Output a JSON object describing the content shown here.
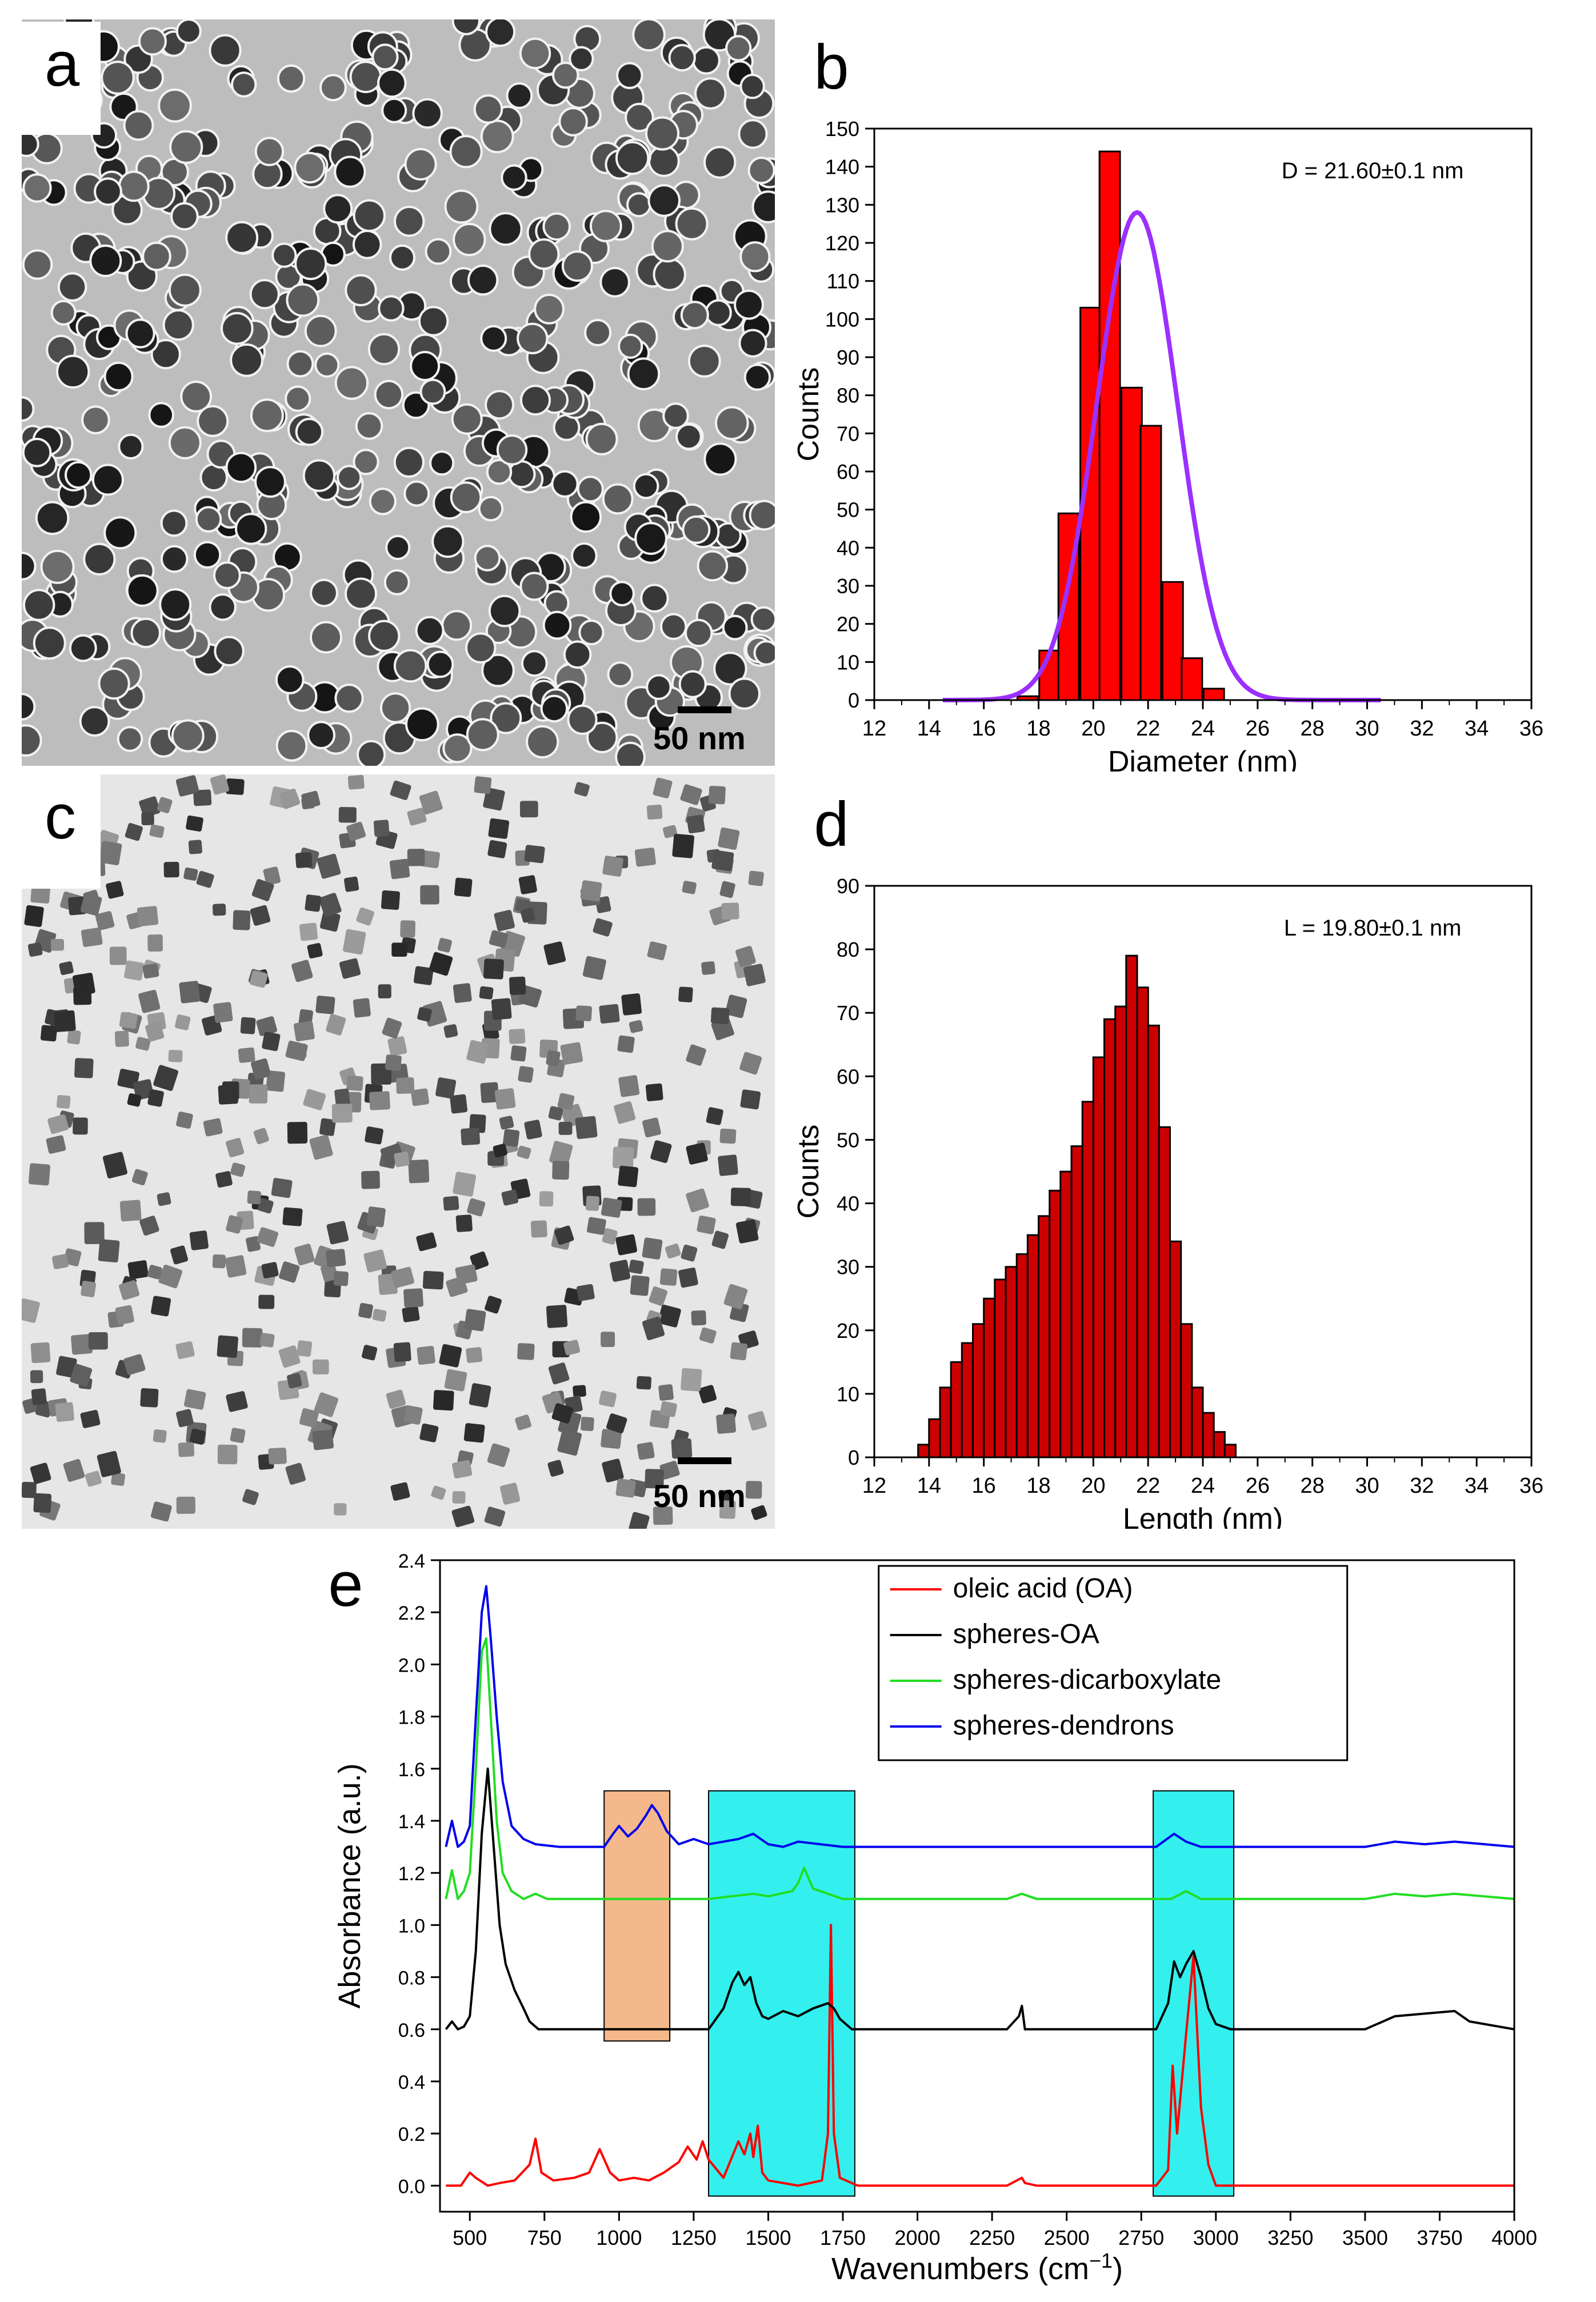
{
  "panels": {
    "a": {
      "letter": "a",
      "scale_label": "50 nm"
    },
    "c": {
      "letter": "c",
      "scale_label": "50 nm"
    }
  },
  "chart_data": [
    {
      "id": "b",
      "type": "bar",
      "letter": "b",
      "xlabel": "Diameter (nm)",
      "ylabel": "Counts",
      "annotation": "D = 21.60±0.1 nm",
      "xlim": [
        12,
        36
      ],
      "ylim": [
        0,
        150
      ],
      "xticks": [
        12,
        14,
        16,
        18,
        20,
        22,
        24,
        26,
        28,
        30,
        32,
        34,
        36
      ],
      "yticks": [
        0,
        10,
        20,
        30,
        40,
        50,
        60,
        70,
        80,
        90,
        100,
        110,
        120,
        130,
        140,
        150
      ],
      "bin_width": 0.75,
      "bins": [
        17.6,
        18.4,
        19.1,
        19.9,
        20.6,
        21.4,
        22.1,
        22.9,
        23.6,
        24.4,
        25.1,
        25.9,
        26.6
      ],
      "values": [
        1,
        13,
        49,
        103,
        144,
        82,
        72,
        31,
        11,
        3,
        0,
        0,
        0
      ],
      "bar_color": "#ff0000",
      "fit": {
        "type": "gaussian",
        "mean": 21.6,
        "sigma": 1.48,
        "peak": 128,
        "range": [
          14.5,
          30.5
        ],
        "color": "#9b30ff"
      }
    },
    {
      "id": "d",
      "type": "bar",
      "letter": "d",
      "xlabel": "Length (nm)",
      "ylabel": "Counts",
      "annotation": "L = 19.80±0.1 nm",
      "xlim": [
        12,
        36
      ],
      "ylim": [
        0,
        90
      ],
      "xticks": [
        12,
        14,
        16,
        18,
        20,
        22,
        24,
        26,
        28,
        30,
        32,
        34,
        36
      ],
      "yticks": [
        0,
        10,
        20,
        30,
        40,
        50,
        60,
        70,
        80,
        90
      ],
      "bin_width": 0.4,
      "bins": [
        13.8,
        14.2,
        14.6,
        15.0,
        15.4,
        15.8,
        16.2,
        16.6,
        17.0,
        17.4,
        17.8,
        18.2,
        18.6,
        19.0,
        19.4,
        19.8,
        20.2,
        20.6,
        21.0,
        21.4,
        21.8,
        22.2,
        22.6,
        23.0,
        23.4,
        23.8,
        24.2,
        24.6,
        25.0
      ],
      "values": [
        2,
        6,
        11,
        15,
        18,
        21,
        25,
        28,
        30,
        32,
        35,
        38,
        42,
        45,
        49,
        56,
        63,
        69,
        71,
        79,
        74,
        68,
        52,
        34,
        21,
        11,
        7,
        4,
        2
      ],
      "bar_color": "#cc0000"
    },
    {
      "id": "e",
      "type": "line",
      "letter": "e",
      "xlabel": "Wavenumbers (cm",
      "xlabel_sup": "−1",
      "xlabel_end": ")",
      "ylabel": "Absorbance (a.u.)",
      "xlim": [
        400,
        4000
      ],
      "ylim": [
        -0.1,
        2.4
      ],
      "xticks": [
        500,
        750,
        1000,
        1250,
        1500,
        1750,
        2000,
        2250,
        2500,
        2750,
        3000,
        3250,
        3500,
        3750,
        4000
      ],
      "yticks": [
        0.0,
        0.2,
        0.4,
        0.6,
        0.8,
        1.0,
        1.2,
        1.4,
        1.6,
        1.8,
        2.0,
        2.2,
        2.4
      ],
      "highlights": [
        {
          "x0": 950,
          "x1": 1170,
          "y0": 0.555,
          "y1": 1.515,
          "color": "#f5b88a"
        },
        {
          "x0": 1300,
          "x1": 1790,
          "y0": -0.04,
          "y1": 1.515,
          "color": "#33f0ee"
        },
        {
          "x0": 2790,
          "x1": 3060,
          "y0": -0.04,
          "y1": 1.515,
          "color": "#33f0ee"
        }
      ],
      "series": [
        {
          "name": "oleic acid (OA)",
          "color": "#ff0000",
          "x": [
            420,
            470,
            500,
            520,
            560,
            600,
            650,
            700,
            720,
            740,
            780,
            850,
            900,
            935,
            970,
            1000,
            1050,
            1100,
            1150,
            1200,
            1230,
            1260,
            1280,
            1300,
            1350,
            1400,
            1420,
            1440,
            1450,
            1465,
            1480,
            1500,
            1600,
            1680,
            1700,
            1710,
            1720,
            1740,
            1800,
            2300,
            2350,
            2360,
            2400,
            2800,
            2840,
            2855,
            2870,
            2900,
            2925,
            2950,
            2975,
            3000,
            3100,
            3500,
            4000
          ],
          "y": [
            0,
            0,
            0.05,
            0.03,
            0,
            0.01,
            0.02,
            0.08,
            0.18,
            0.05,
            0.02,
            0.03,
            0.05,
            0.14,
            0.05,
            0.02,
            0.03,
            0.02,
            0.05,
            0.09,
            0.15,
            0.1,
            0.17,
            0.1,
            0.03,
            0.17,
            0.12,
            0.2,
            0.11,
            0.23,
            0.05,
            0.02,
            0.0,
            0.02,
            0.2,
            1.0,
            0.2,
            0.03,
            0,
            0,
            0.03,
            0.01,
            0,
            0,
            0.06,
            0.46,
            0.2,
            0.58,
            0.88,
            0.3,
            0.08,
            0,
            0,
            0,
            0
          ]
        },
        {
          "name": "spheres-OA",
          "color": "#000000",
          "x": [
            420,
            440,
            460,
            480,
            500,
            520,
            540,
            560,
            580,
            600,
            620,
            650,
            680,
            700,
            730,
            750,
            1000,
            1300,
            1350,
            1380,
            1400,
            1420,
            1440,
            1460,
            1480,
            1500,
            1550,
            1600,
            1650,
            1700,
            1720,
            1740,
            1780,
            2300,
            2340,
            2350,
            2360,
            2400,
            2800,
            2840,
            2860,
            2880,
            2900,
            2925,
            2950,
            2975,
            3000,
            3050,
            3500,
            3600,
            3700,
            3800,
            3850,
            4000
          ],
          "y": [
            0.6,
            0.63,
            0.6,
            0.61,
            0.65,
            0.9,
            1.35,
            1.6,
            1.3,
            1.0,
            0.85,
            0.75,
            0.68,
            0.63,
            0.6,
            0.6,
            0.6,
            0.6,
            0.68,
            0.78,
            0.82,
            0.77,
            0.8,
            0.7,
            0.65,
            0.64,
            0.67,
            0.65,
            0.68,
            0.7,
            0.68,
            0.64,
            0.6,
            0.6,
            0.65,
            0.69,
            0.6,
            0.6,
            0.6,
            0.7,
            0.86,
            0.8,
            0.85,
            0.9,
            0.8,
            0.68,
            0.62,
            0.6,
            0.6,
            0.65,
            0.66,
            0.67,
            0.63,
            0.6
          ]
        },
        {
          "name": "spheres-dicarboxylate",
          "color": "#22dd22",
          "x": [
            420,
            440,
            460,
            480,
            500,
            520,
            540,
            555,
            570,
            590,
            610,
            640,
            680,
            720,
            760,
            1000,
            1300,
            1450,
            1500,
            1580,
            1600,
            1620,
            1650,
            1700,
            1750,
            2000,
            2300,
            2350,
            2400,
            2850,
            2900,
            2950,
            3500,
            3600,
            3700,
            3800,
            3900,
            4000
          ],
          "y": [
            1.1,
            1.21,
            1.1,
            1.13,
            1.2,
            1.6,
            2.05,
            2.1,
            1.8,
            1.4,
            1.2,
            1.13,
            1.1,
            1.12,
            1.1,
            1.1,
            1.1,
            1.12,
            1.11,
            1.13,
            1.16,
            1.22,
            1.14,
            1.12,
            1.1,
            1.1,
            1.1,
            1.12,
            1.1,
            1.1,
            1.13,
            1.1,
            1.1,
            1.12,
            1.11,
            1.12,
            1.11,
            1.1
          ]
        },
        {
          "name": "spheres-dendrons",
          "color": "#0000ee",
          "x": [
            420,
            440,
            460,
            480,
            500,
            520,
            540,
            555,
            570,
            590,
            610,
            640,
            680,
            720,
            800,
            950,
            980,
            1000,
            1030,
            1060,
            1090,
            1110,
            1130,
            1160,
            1200,
            1250,
            1300,
            1400,
            1450,
            1500,
            1550,
            1600,
            1750,
            2000,
            2300,
            2800,
            2860,
            2900,
            2950,
            3500,
            3600,
            3700,
            3800,
            3900,
            4000
          ],
          "y": [
            1.3,
            1.4,
            1.3,
            1.32,
            1.38,
            1.8,
            2.2,
            2.3,
            2.1,
            1.8,
            1.55,
            1.38,
            1.33,
            1.31,
            1.3,
            1.3,
            1.35,
            1.38,
            1.34,
            1.37,
            1.42,
            1.46,
            1.43,
            1.36,
            1.31,
            1.33,
            1.31,
            1.33,
            1.35,
            1.31,
            1.3,
            1.32,
            1.3,
            1.3,
            1.3,
            1.3,
            1.35,
            1.32,
            1.3,
            1.3,
            1.32,
            1.31,
            1.32,
            1.31,
            1.3
          ]
        }
      ]
    }
  ]
}
